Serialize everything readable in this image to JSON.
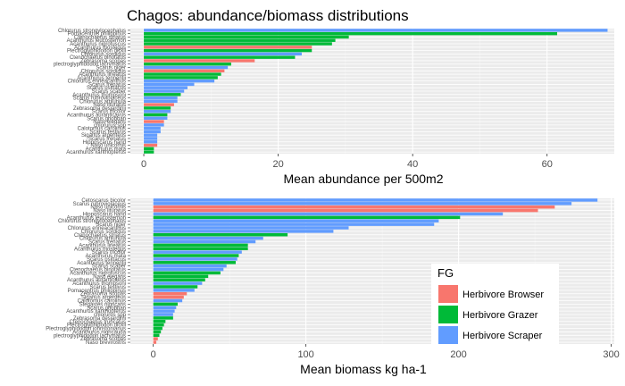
{
  "title": "Chagos: abundance/biomass distributions",
  "colors": {
    "Herbivore Browser": "#F8766D",
    "Herbivore Grazer": "#00BA38",
    "Herbivore Scraper": "#619CFF"
  },
  "legend": {
    "title": "FG",
    "placement": "right",
    "items": [
      "Herbivore Browser",
      "Herbivore Grazer",
      "Herbivore Scraper"
    ]
  },
  "chart_data": [
    {
      "type": "bar",
      "orientation": "horizontal",
      "xlabel": "Mean abundance per 500m2",
      "xlim": [
        -2,
        70
      ],
      "xticks": [
        0,
        20,
        40,
        60
      ],
      "grid": true,
      "bars": [
        {
          "label": "Chlorurus strongylocephalus",
          "value": 69,
          "group": "Herbivore Scraper"
        },
        {
          "label": "Pomacentrus philippinus",
          "value": 61.5,
          "group": "Herbivore Grazer"
        },
        {
          "label": "Ctenochaetus striatus",
          "value": 30.5,
          "group": "Herbivore Grazer"
        },
        {
          "label": "Acanthurus leucosternon",
          "value": 28.5,
          "group": "Herbivore Grazer"
        },
        {
          "label": "Acanthurus nigrofuscus",
          "value": 28,
          "group": "Herbivore Grazer"
        },
        {
          "label": "Acanthurus triostegus",
          "value": 25,
          "group": "Herbivore Browser"
        },
        {
          "label": "Plectroglyphidodon dickii",
          "value": 25,
          "group": "Herbivore Grazer"
        },
        {
          "label": "Chlorurus sordidus",
          "value": 23.5,
          "group": "Herbivore Scraper"
        },
        {
          "label": "Ctenochaetus binotatus",
          "value": 22.5,
          "group": "Herbivore Grazer"
        },
        {
          "label": "Zebrasoma scopas",
          "value": 16.5,
          "group": "Herbivore Browser"
        },
        {
          "label": "plectroglyphidodon lacrymatus",
          "value": 13,
          "group": "Herbivore Grazer"
        },
        {
          "label": "Scarus niger",
          "value": 12.5,
          "group": "Herbivore Scraper"
        },
        {
          "label": "Chlorurus sordidus",
          "value": 12,
          "group": "Herbivore Browser"
        },
        {
          "label": "Acanthurus lineatus",
          "value": 11.5,
          "group": "Herbivore Grazer"
        },
        {
          "label": "Acanthurus tennentii",
          "value": 11,
          "group": "Herbivore Grazer"
        },
        {
          "label": "Chlorurus enneacanthus",
          "value": 10.5,
          "group": "Herbivore Scraper"
        },
        {
          "label": "Scarus frenatus",
          "value": 7.5,
          "group": "Herbivore Scraper"
        },
        {
          "label": "Scarus psittacus",
          "value": 6.5,
          "group": "Herbivore Scraper"
        },
        {
          "label": "Scarus scaber",
          "value": 6,
          "group": "Herbivore Scraper"
        },
        {
          "label": "Acanthurus thompsoni",
          "value": 5.5,
          "group": "Herbivore Grazer"
        },
        {
          "label": "Scarus rubroviolaceus",
          "value": 5,
          "group": "Herbivore Scraper"
        },
        {
          "label": "Chlorurus atrilunula",
          "value": 5,
          "group": "Herbivore Scraper"
        },
        {
          "label": "Naso lituratus",
          "value": 4.5,
          "group": "Herbivore Browser"
        },
        {
          "label": "Zebrasoma desjardinii",
          "value": 4,
          "group": "Herbivore Grazer"
        },
        {
          "label": "Scarus tricolor",
          "value": 4,
          "group": "Herbivore Scraper"
        },
        {
          "label": "Acanthurus auranticavus",
          "value": 3.5,
          "group": "Herbivore Grazer"
        },
        {
          "label": "Scarus ghobban",
          "value": 3.5,
          "group": "Herbivore Scraper"
        },
        {
          "label": "Naso elegans",
          "value": 3,
          "group": "Herbivore Browser"
        },
        {
          "label": "chlorurus spp",
          "value": 3,
          "group": "Herbivore Scraper"
        },
        {
          "label": "Calotomus carolinus",
          "value": 2.5,
          "group": "Herbivore Scraper"
        },
        {
          "label": "Scarus festivus",
          "value": 2.5,
          "group": "Herbivore Scraper"
        },
        {
          "label": "Siganus argenteus",
          "value": 2,
          "group": "Herbivore Scraper"
        },
        {
          "label": "Scarus frenatus",
          "value": 2,
          "group": "Herbivore Scraper"
        },
        {
          "label": "Hipposcarus harid",
          "value": 2,
          "group": "Herbivore Scraper"
        },
        {
          "label": "Naso unicornis",
          "value": 2,
          "group": "Herbivore Browser"
        },
        {
          "label": "Acanthurus mata",
          "value": 1.5,
          "group": "Herbivore Grazer"
        },
        {
          "label": "Acanthurus xanthopterus",
          "value": 1.5,
          "group": "Herbivore Grazer"
        }
      ]
    },
    {
      "type": "bar",
      "orientation": "horizontal",
      "xlabel": "Mean biomass kg ha-1",
      "xlim": [
        -15,
        302
      ],
      "xticks": [
        0,
        100,
        200,
        300
      ],
      "grid": true,
      "bars": [
        {
          "label": "Cetoscarus bicolor",
          "value": 291,
          "group": "Herbivore Scraper"
        },
        {
          "label": "Scarus rubroviolaceus",
          "value": 274,
          "group": "Herbivore Scraper"
        },
        {
          "label": "Naso unicornis",
          "value": 263,
          "group": "Herbivore Browser"
        },
        {
          "label": "Naso lituratus",
          "value": 252,
          "group": "Herbivore Browser"
        },
        {
          "label": "Hipposcarus harid",
          "value": 229,
          "group": "Herbivore Scraper"
        },
        {
          "label": "Acanthurus leucosternon",
          "value": 201,
          "group": "Herbivore Grazer"
        },
        {
          "label": "Chlorurus strongylocephalus",
          "value": 187,
          "group": "Herbivore Scraper"
        },
        {
          "label": "Scarus niger",
          "value": 184,
          "group": "Herbivore Scraper"
        },
        {
          "label": "Chlorurus enneacanthus",
          "value": 128,
          "group": "Herbivore Scraper"
        },
        {
          "label": "Chlorurus sordidus",
          "value": 118,
          "group": "Herbivore Scraper"
        },
        {
          "label": "Ctenochaetus striatus",
          "value": 88,
          "group": "Herbivore Grazer"
        },
        {
          "label": "Chlorurus atrilunula",
          "value": 72,
          "group": "Herbivore Scraper"
        },
        {
          "label": "Scarus frenatus",
          "value": 67,
          "group": "Herbivore Scraper"
        },
        {
          "label": "Acanthurus lineatus",
          "value": 62,
          "group": "Herbivore Grazer"
        },
        {
          "label": "Acanthurus triostegus",
          "value": 62,
          "group": "Herbivore Grazer"
        },
        {
          "label": "Scarus tricolor",
          "value": 58,
          "group": "Herbivore Scraper"
        },
        {
          "label": "Acanthurus mata",
          "value": 56,
          "group": "Herbivore Grazer"
        },
        {
          "label": "Scarus psittacus",
          "value": 55,
          "group": "Herbivore Scraper"
        },
        {
          "label": "Acanthurus tennentii",
          "value": 54,
          "group": "Herbivore Grazer"
        },
        {
          "label": "Scarus scaber",
          "value": 48,
          "group": "Herbivore Scraper"
        },
        {
          "label": "Ctenochaetus binotatus",
          "value": 46,
          "group": "Herbivore Scraper"
        },
        {
          "label": "Acanthurus nigrofuscus",
          "value": 44,
          "group": "Herbivore Grazer"
        },
        {
          "label": "Naso elegans",
          "value": 36,
          "group": "Herbivore Grazer"
        },
        {
          "label": "Acanthurus auranticavus",
          "value": 34,
          "group": "Herbivore Grazer"
        },
        {
          "label": "Acanthurus thompsoni",
          "value": 32,
          "group": "Herbivore Scraper"
        },
        {
          "label": "Scarus festivus",
          "value": 29,
          "group": "Herbivore Grazer"
        },
        {
          "label": "Pomacentrus philippinus",
          "value": 27,
          "group": "Herbivore Scraper"
        },
        {
          "label": "Zebrasoma scopas",
          "value": 22,
          "group": "Herbivore Browser"
        },
        {
          "label": "Siganus argenteus",
          "value": 20,
          "group": "Herbivore Browser"
        },
        {
          "label": "Calotomus carolinus",
          "value": 19,
          "group": "Herbivore Scraper"
        },
        {
          "label": "Stegastes nigricans",
          "value": 16,
          "group": "Herbivore Grazer"
        },
        {
          "label": "Scarus ghobban",
          "value": 15,
          "group": "Herbivore Scraper"
        },
        {
          "label": "Acanthurus xanthopterus",
          "value": 14,
          "group": "Herbivore Scraper"
        },
        {
          "label": "chlorurus spp",
          "value": 13,
          "group": "Herbivore Scraper"
        },
        {
          "label": "Zebrasoma desjardinii",
          "value": 13,
          "group": "Herbivore Grazer"
        },
        {
          "label": "Ctenochaetus truncatus",
          "value": 8,
          "group": "Herbivore Grazer"
        },
        {
          "label": "Plectroglyphidodon dickii",
          "value": 7,
          "group": "Herbivore Grazer"
        },
        {
          "label": "Plectroglyphidodon johnstonianus",
          "value": 6,
          "group": "Herbivore Grazer"
        },
        {
          "label": "Acanthurus nigricauda",
          "value": 5,
          "group": "Herbivore Grazer"
        },
        {
          "label": "plectroglyphidodon lacrymatus",
          "value": 4,
          "group": "Herbivore Grazer"
        },
        {
          "label": "Zebrasoma scopas",
          "value": 3,
          "group": "Herbivore Browser"
        },
        {
          "label": "Naso brevirostris",
          "value": 2,
          "group": "Herbivore Browser"
        }
      ]
    }
  ]
}
